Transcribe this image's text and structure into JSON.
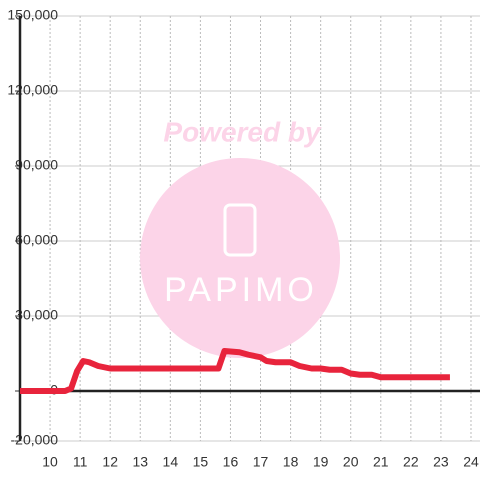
{
  "chart_data": {
    "type": "line",
    "watermark": {
      "title": "Powered by",
      "brand": "PAPIMO"
    },
    "x": [
      9,
      10.5,
      10.7,
      10.9,
      11.1,
      11.3,
      11.6,
      12,
      13,
      14,
      15,
      15.6,
      15.8,
      16.3,
      16.6,
      17,
      17.2,
      17.5,
      18,
      18.3,
      18.7,
      19,
      19.3,
      19.7,
      20,
      20.3,
      20.7,
      21,
      21.5,
      22,
      23,
      23.3
    ],
    "series": [
      {
        "color": "#e8243c",
        "values": [
          0,
          0,
          1000,
          8000,
          12000,
          11500,
          10000,
          9000,
          9000,
          9000,
          9000,
          9000,
          16000,
          15500,
          14500,
          13500,
          12000,
          11500,
          11500,
          10000,
          9000,
          9000,
          8500,
          8500,
          7000,
          6500,
          6500,
          5500,
          5500,
          5500,
          5500,
          5500
        ]
      }
    ],
    "xlim": [
      9,
      24.3
    ],
    "xticks": [
      10,
      11,
      12,
      13,
      14,
      15,
      16,
      17,
      18,
      19,
      20,
      21,
      22,
      23,
      24
    ],
    "ylim": [
      -20000,
      150000
    ],
    "yticks": [
      {
        "value": -20000,
        "label": "-20,000"
      },
      0,
      {
        "value": 30000,
        "label": "30,000"
      },
      {
        "value": 60000,
        "label": "60,000"
      },
      {
        "value": 90000,
        "label": "90,000"
      },
      {
        "value": 120000,
        "label": "120,000"
      },
      {
        "value": 150000,
        "label": "150,000"
      }
    ],
    "grid": true
  }
}
